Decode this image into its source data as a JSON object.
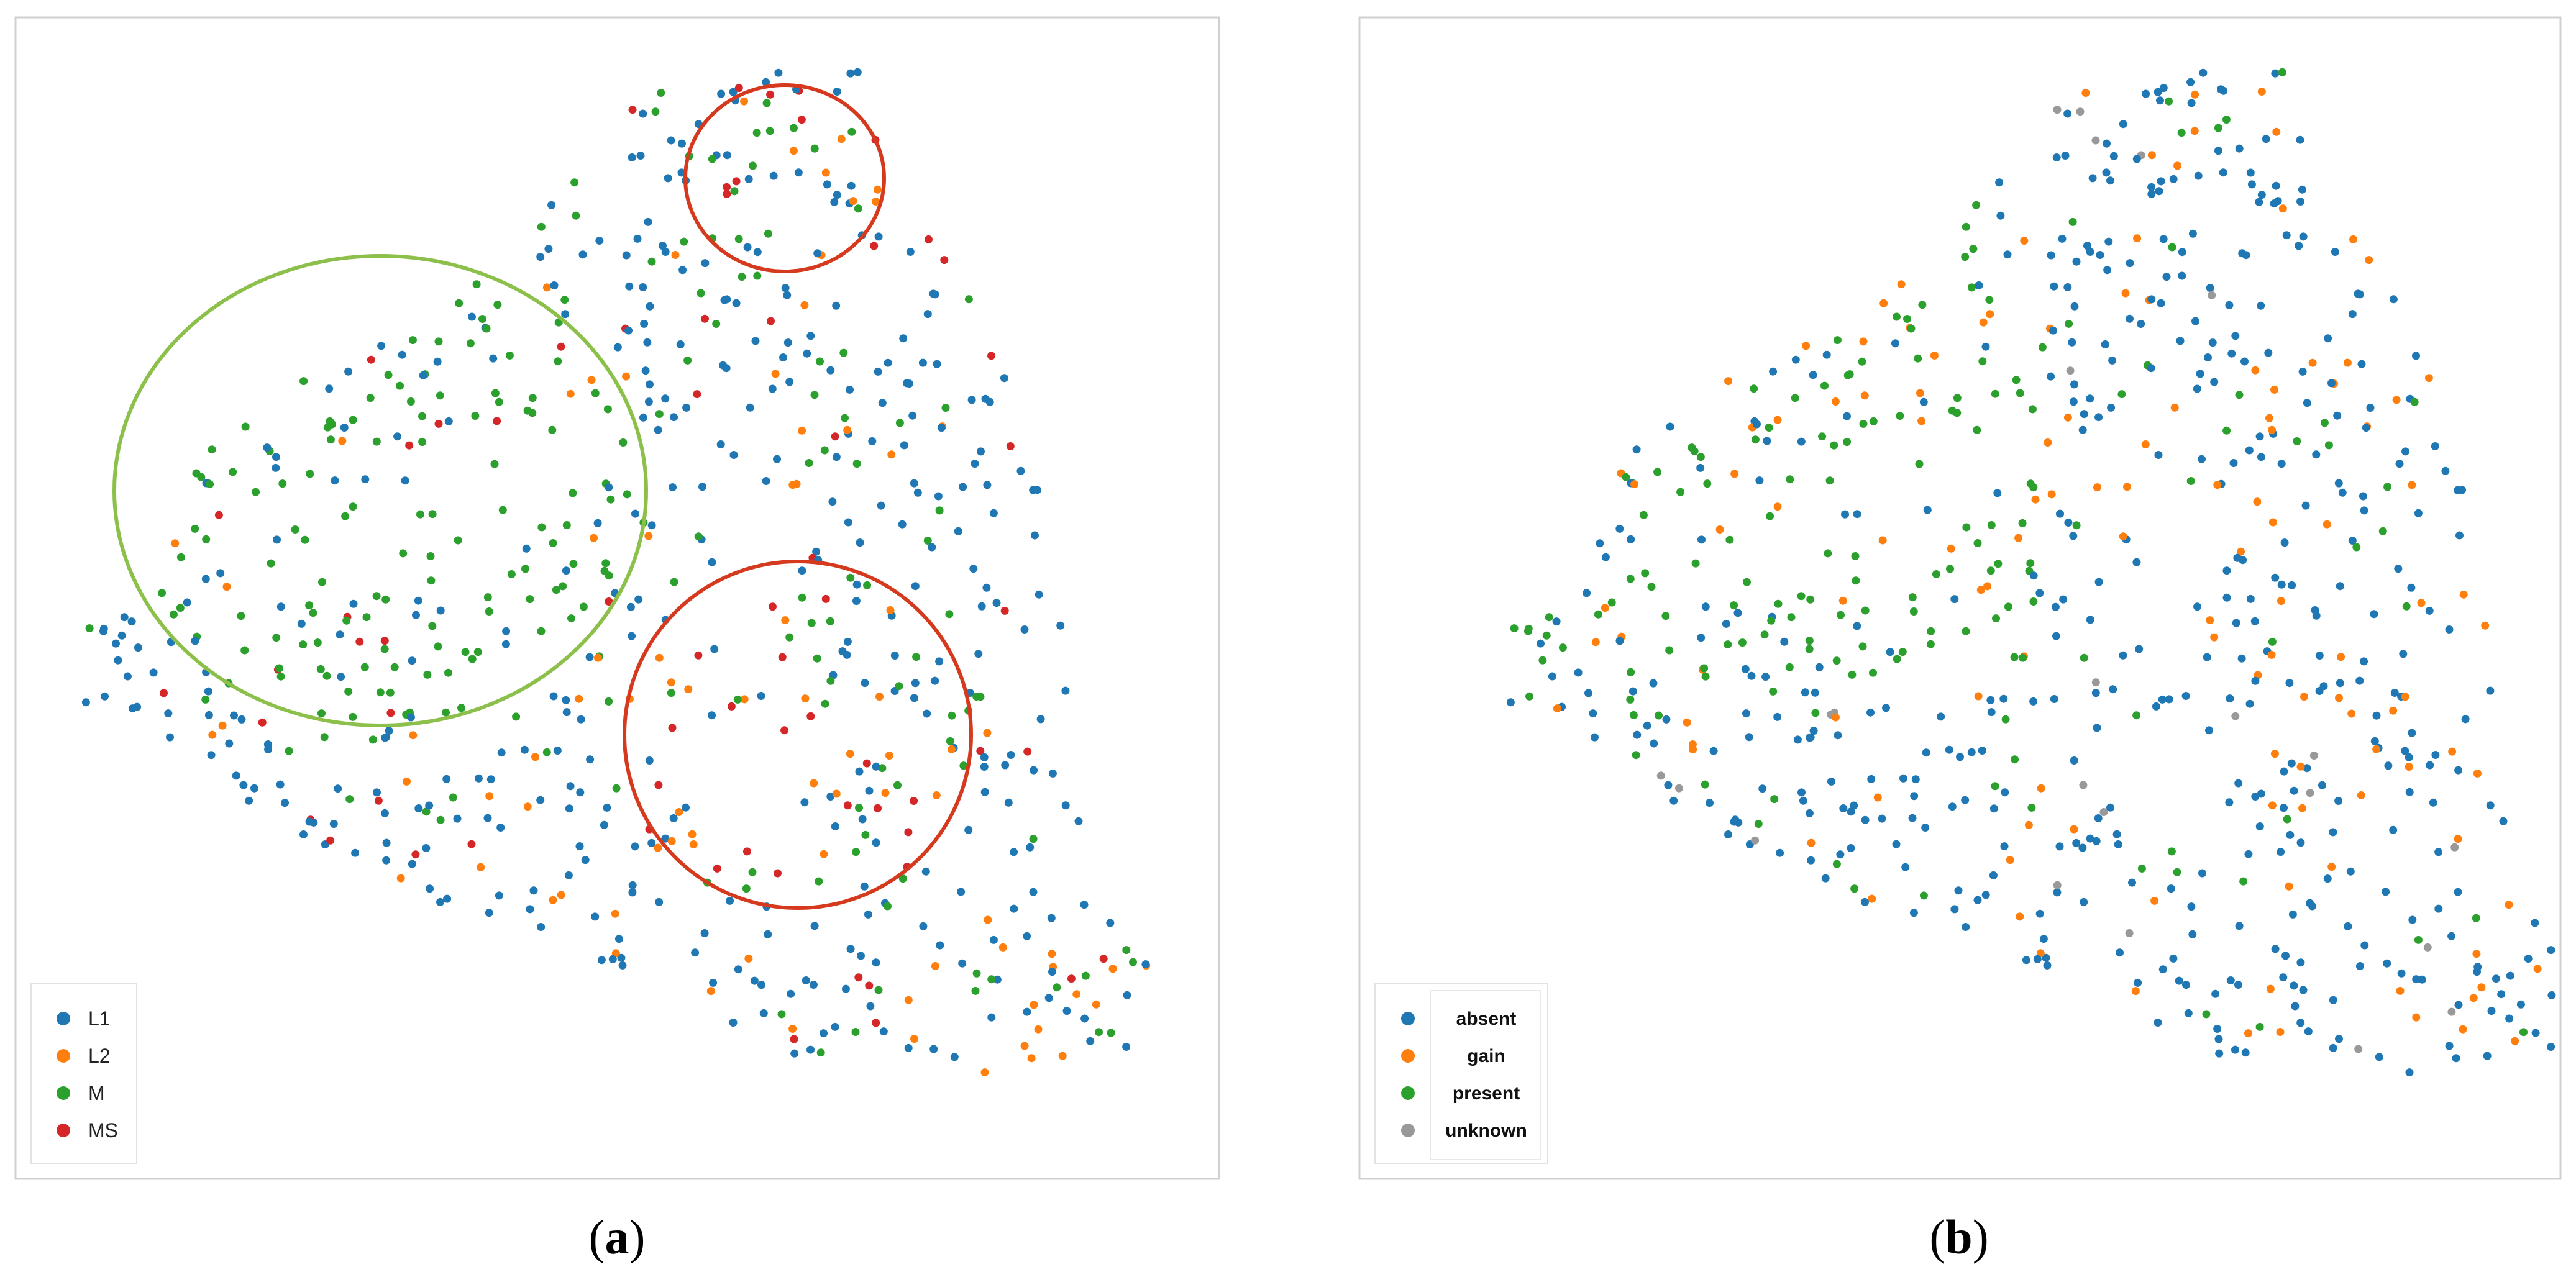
{
  "colors": {
    "blue": "#1f77b4",
    "orange": "#ff7f0e",
    "green": "#2ca02c",
    "red": "#d62728",
    "gray": "#999999",
    "ring_red": "#d63a1e",
    "ring_green": "#8cc04b"
  },
  "chart_data": [
    {
      "type": "scatter",
      "caption": {
        "open": "(",
        "letter": "a",
        "close": ")"
      },
      "title": "",
      "xlabel": "",
      "ylabel": "",
      "legend": "bottom-left",
      "grid": false,
      "series": [
        {
          "name": "L1",
          "color": "#1f77b4"
        },
        {
          "name": "L2",
          "color": "#ff7f0e"
        },
        {
          "name": "M",
          "color": "#2ca02c"
        },
        {
          "name": "MS",
          "color": "#d62728"
        }
      ],
      "annotations": [
        {
          "shape": "ellipse",
          "color": "red",
          "label": ""
        },
        {
          "shape": "ellipse",
          "color": "green",
          "label": ""
        },
        {
          "shape": "ellipse",
          "color": "red",
          "label": ""
        }
      ]
    },
    {
      "type": "scatter",
      "caption": {
        "open": "(",
        "letter": "b",
        "close": ")"
      },
      "title": "",
      "xlabel": "",
      "ylabel": "",
      "legend": "bottom-left",
      "grid": false,
      "series": [
        {
          "name": "absent",
          "color": "#1f77b4"
        },
        {
          "name": "gain",
          "color": "#ff7f0e"
        },
        {
          "name": "present",
          "color": "#2ca02c"
        },
        {
          "name": "unknown",
          "color": "#999999"
        }
      ]
    }
  ]
}
